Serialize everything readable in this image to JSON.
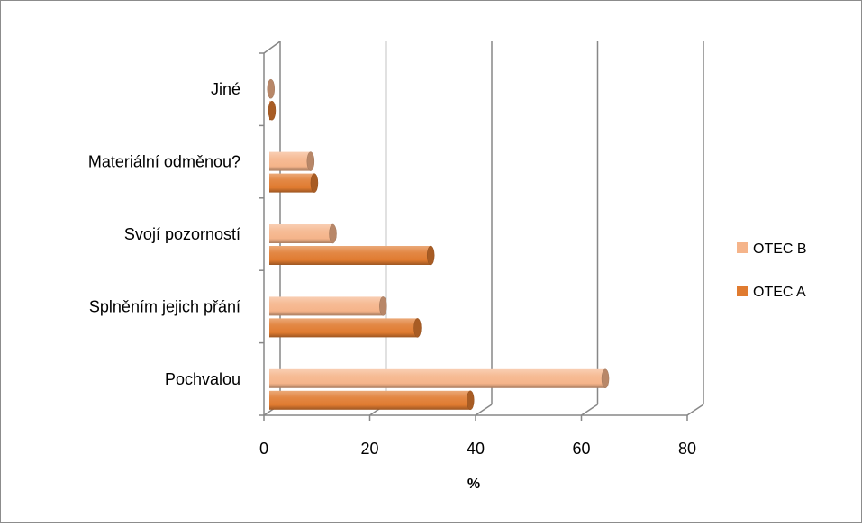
{
  "chart_data": {
    "type": "bar",
    "orientation": "horizontal",
    "style": "3d-cylinder",
    "categories": [
      "Pochvalou",
      "Splněním jejich přání",
      "Svojí pozorností",
      "Materiální odměnou?",
      "Jiné"
    ],
    "series": [
      {
        "name": "OTEC A",
        "values": [
          38,
          28,
          30.5,
          8.5,
          0.5
        ],
        "color": "#E07B30"
      },
      {
        "name": "OTEC B",
        "values": [
          63.5,
          21.5,
          12,
          7.8,
          0.3
        ],
        "color": "#F5B48A"
      }
    ],
    "xlim": [
      0,
      80
    ],
    "xticks": [
      "0",
      "20",
      "40",
      "60",
      "80"
    ],
    "xlabel": "%",
    "ylabel": "",
    "title": "",
    "grid": true,
    "legend_position": "right",
    "legend_items": [
      "OTEC B",
      "OTEC A"
    ]
  }
}
